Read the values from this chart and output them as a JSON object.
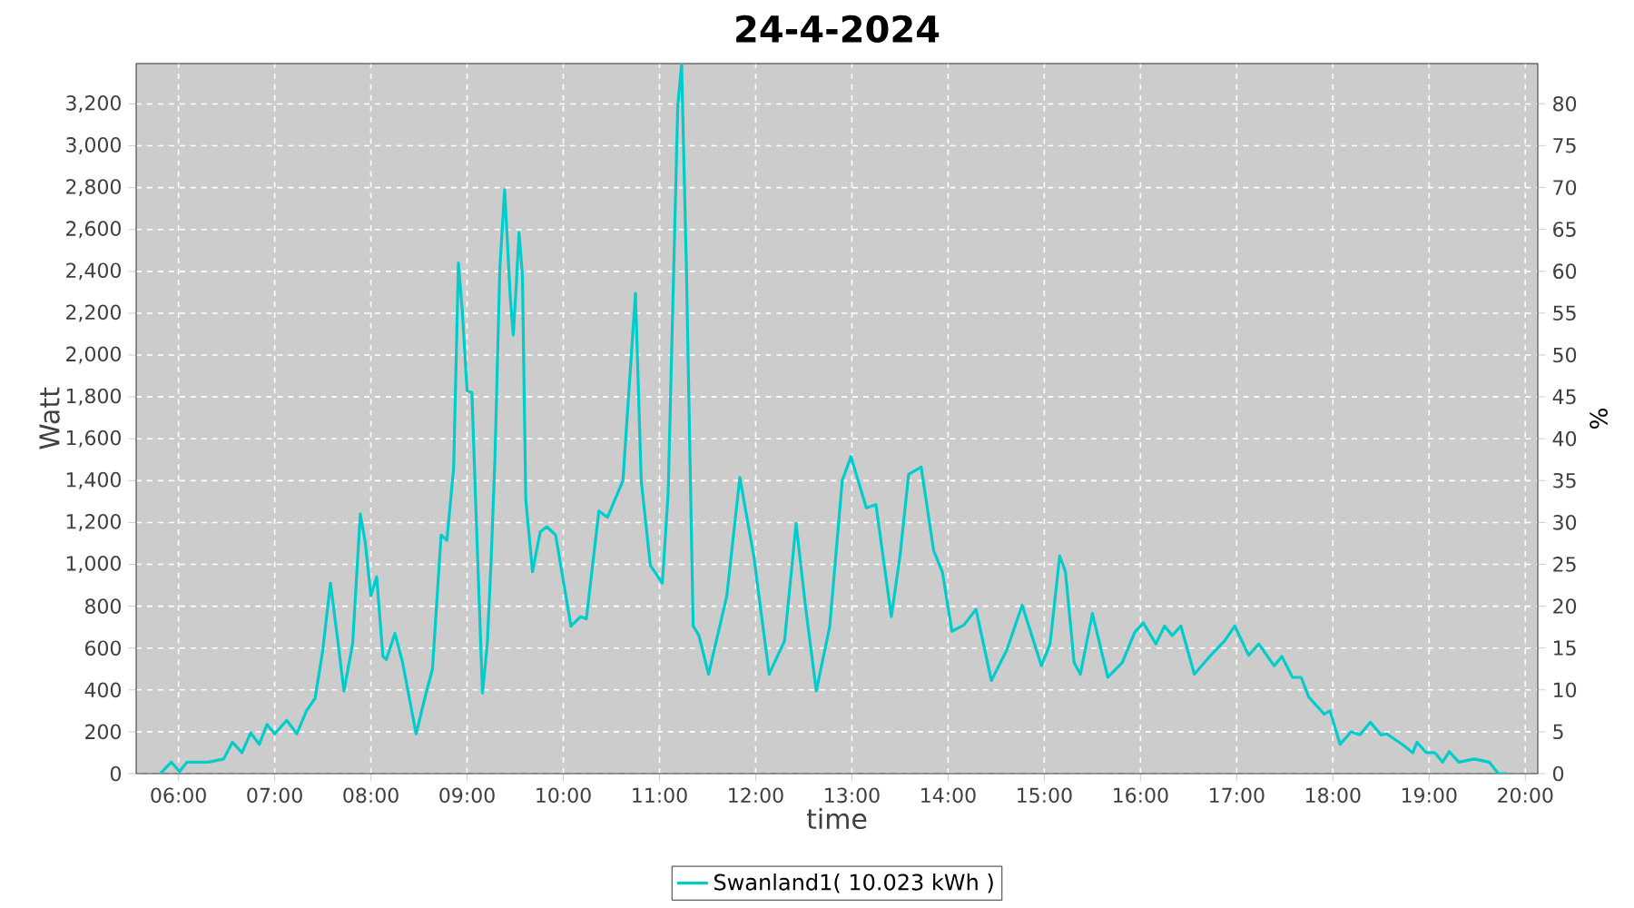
{
  "chart_data": {
    "type": "line",
    "title": "24-4-2024",
    "xlabel": "time",
    "ylabel": "Watt",
    "y2label": "%",
    "xlim": [
      5.56,
      20.13
    ],
    "ylim": [
      0,
      3393
    ],
    "y2lim": [
      0,
      84.8
    ],
    "xticks": [
      {
        "value": 6,
        "label": "06:00"
      },
      {
        "value": 7,
        "label": "07:00"
      },
      {
        "value": 8,
        "label": "08:00"
      },
      {
        "value": 9,
        "label": "09:00"
      },
      {
        "value": 10,
        "label": "10:00"
      },
      {
        "value": 11,
        "label": "11:00"
      },
      {
        "value": 12,
        "label": "12:00"
      },
      {
        "value": 13,
        "label": "13:00"
      },
      {
        "value": 14,
        "label": "14:00"
      },
      {
        "value": 15,
        "label": "15:00"
      },
      {
        "value": 16,
        "label": "16:00"
      },
      {
        "value": 17,
        "label": "17:00"
      },
      {
        "value": 18,
        "label": "18:00"
      },
      {
        "value": 19,
        "label": "19:00"
      },
      {
        "value": 20,
        "label": "20:00"
      }
    ],
    "yticks": [
      0,
      200,
      400,
      600,
      800,
      {
        "value": 1000,
        "label": "1,000"
      },
      {
        "value": 1200,
        "label": "1,200"
      },
      {
        "value": 1400,
        "label": "1,400"
      },
      {
        "value": 1600,
        "label": "1,600"
      },
      {
        "value": 1800,
        "label": "1,800"
      },
      {
        "value": 2000,
        "label": "2,000"
      },
      {
        "value": 2200,
        "label": "2,200"
      },
      {
        "value": 2400,
        "label": "2,400"
      },
      {
        "value": 2600,
        "label": "2,600"
      },
      {
        "value": 2800,
        "label": "2,800"
      },
      {
        "value": 3000,
        "label": "3,000"
      },
      {
        "value": 3200,
        "label": "3,200"
      }
    ],
    "y2ticks": [
      0,
      5,
      10,
      15,
      20,
      25,
      30,
      35,
      40,
      45,
      50,
      55,
      60,
      65,
      70,
      75,
      80
    ],
    "grid": true,
    "legend": "bottom",
    "series": [
      {
        "name": "Swanland1( 10.023 kWh )",
        "color": "#00cccc",
        "x": [
          5.81,
          5.925,
          6.01,
          6.09,
          6.31,
          6.47,
          6.56,
          6.66,
          6.75,
          6.84,
          6.92,
          7.0,
          7.125,
          7.23,
          7.33,
          7.42,
          7.5,
          7.58,
          7.66,
          7.72,
          7.81,
          7.89,
          7.94,
          8.0,
          8.06,
          8.125,
          8.16,
          8.25,
          8.33,
          8.47,
          8.56,
          8.64,
          8.73,
          8.79,
          8.86,
          8.91,
          8.95,
          9.0,
          9.05,
          9.09,
          9.16,
          9.21,
          9.25,
          9.29,
          9.34,
          9.39,
          9.45,
          9.48,
          9.51,
          9.54,
          9.575,
          9.61,
          9.68,
          9.76,
          9.83,
          9.92,
          10.08,
          10.18,
          10.24,
          10.37,
          10.46,
          10.62,
          10.75,
          10.81,
          10.905,
          11.03,
          11.09,
          11.19,
          11.23,
          11.28,
          11.35,
          11.41,
          11.51,
          11.7,
          11.835,
          11.98,
          12.14,
          12.3,
          12.42,
          12.52,
          12.63,
          12.77,
          12.9,
          12.99,
          13.15,
          13.25,
          13.41,
          13.5,
          13.59,
          13.72,
          13.85,
          13.94,
          14.04,
          14.165,
          14.29,
          14.45,
          14.61,
          14.77,
          14.97,
          15.06,
          15.16,
          15.22,
          15.31,
          15.375,
          15.5,
          15.66,
          15.81,
          15.94,
          16.03,
          16.16,
          16.25,
          16.33,
          16.42,
          16.56,
          16.72,
          16.875,
          16.98,
          17.125,
          17.23,
          17.39,
          17.47,
          17.58,
          17.67,
          17.75,
          17.91,
          17.97,
          18.075,
          18.19,
          18.28,
          18.39,
          18.5,
          18.56,
          18.72,
          18.83,
          18.875,
          18.97,
          19.06,
          19.14,
          19.21,
          19.31,
          19.47,
          19.625,
          19.72,
          19.81
        ],
        "values": [
          0,
          55,
          10,
          55,
          55,
          70,
          150,
          100,
          195,
          140,
          235,
          190,
          255,
          190,
          300,
          360,
          590,
          910,
          620,
          395,
          620,
          1240,
          1110,
          850,
          940,
          560,
          545,
          670,
          530,
          190,
          360,
          500,
          1140,
          1115,
          1460,
          2440,
          2210,
          1830,
          1820,
          1285,
          385,
          620,
          1020,
          1515,
          2410,
          2790,
          2270,
          2095,
          2325,
          2585,
          2380,
          1310,
          965,
          1155,
          1180,
          1140,
          705,
          750,
          740,
          1255,
          1225,
          1400,
          2295,
          1400,
          995,
          910,
          1340,
          3190,
          3390,
          2410,
          705,
          660,
          475,
          850,
          1415,
          1040,
          475,
          635,
          1195,
          790,
          395,
          705,
          1400,
          1515,
          1270,
          1285,
          750,
          1040,
          1430,
          1465,
          1065,
          965,
          680,
          710,
          785,
          445,
          590,
          805,
          515,
          620,
          1040,
          965,
          530,
          475,
          765,
          460,
          530,
          675,
          720,
          620,
          705,
          660,
          705,
          475,
          560,
          635,
          705,
          565,
          620,
          515,
          560,
          460,
          460,
          365,
          285,
          300,
          140,
          200,
          185,
          245,
          185,
          190,
          140,
          100,
          150,
          100,
          100,
          55,
          105,
          55,
          70,
          55,
          0,
          0
        ]
      }
    ]
  }
}
